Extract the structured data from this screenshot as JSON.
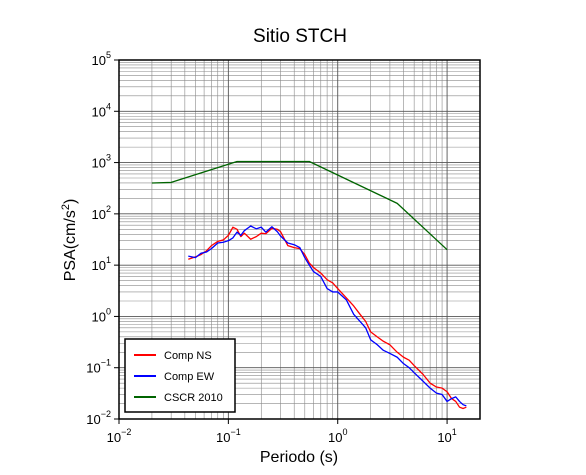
{
  "chart_data": {
    "type": "line",
    "title": "Sitio STCH",
    "xlabel": "Periodo (s)",
    "ylabel": "PSA(cm/s²)",
    "ylabel_parts": {
      "base": "PSA(cm/s",
      "exp": "2",
      "close": ")"
    },
    "x_scale": "log",
    "y_scale": "log",
    "xlim": [
      0.01,
      20
    ],
    "ylim": [
      0.01,
      100000
    ],
    "x_ticks": [
      {
        "value": 0.01,
        "base": "10",
        "exp": "−2"
      },
      {
        "value": 0.1,
        "base": "10",
        "exp": "−1"
      },
      {
        "value": 1,
        "base": "10",
        "exp": "0"
      },
      {
        "value": 10,
        "base": "10",
        "exp": "1"
      }
    ],
    "y_ticks": [
      {
        "value": 0.01,
        "base": "10",
        "exp": "−2"
      },
      {
        "value": 0.1,
        "base": "10",
        "exp": "−1"
      },
      {
        "value": 1,
        "base": "10",
        "exp": "0"
      },
      {
        "value": 10,
        "base": "10",
        "exp": "1"
      },
      {
        "value": 100,
        "base": "10",
        "exp": "2"
      },
      {
        "value": 1000,
        "base": "10",
        "exp": "3"
      },
      {
        "value": 10000,
        "base": "10",
        "exp": "4"
      },
      {
        "value": 100000,
        "base": "10",
        "exp": "5"
      }
    ],
    "grid": true,
    "legend_position": "bottom-left",
    "series": [
      {
        "name": "Comp NS",
        "color": "#ff0000",
        "points": [
          [
            0.043,
            13
          ],
          [
            0.05,
            14.5
          ],
          [
            0.056,
            16
          ],
          [
            0.063,
            19
          ],
          [
            0.07,
            24
          ],
          [
            0.08,
            29
          ],
          [
            0.09,
            31
          ],
          [
            0.1,
            38
          ],
          [
            0.11,
            55
          ],
          [
            0.12,
            50
          ],
          [
            0.13,
            36
          ],
          [
            0.14,
            42
          ],
          [
            0.16,
            32
          ],
          [
            0.18,
            36
          ],
          [
            0.2,
            42
          ],
          [
            0.22,
            41
          ],
          [
            0.25,
            52
          ],
          [
            0.28,
            50
          ],
          [
            0.3,
            45
          ],
          [
            0.35,
            24
          ],
          [
            0.4,
            22
          ],
          [
            0.45,
            21
          ],
          [
            0.5,
            16
          ],
          [
            0.55,
            11
          ],
          [
            0.6,
            9
          ],
          [
            0.7,
            7
          ],
          [
            0.8,
            5.2
          ],
          [
            0.9,
            4.5
          ],
          [
            1.0,
            3.5
          ],
          [
            1.2,
            2.3
          ],
          [
            1.4,
            1.6
          ],
          [
            1.6,
            1.1
          ],
          [
            1.8,
            0.8
          ],
          [
            2.0,
            0.5
          ],
          [
            2.3,
            0.4
          ],
          [
            2.6,
            0.33
          ],
          [
            3.0,
            0.28
          ],
          [
            3.5,
            0.2
          ],
          [
            4.0,
            0.16
          ],
          [
            4.5,
            0.14
          ],
          [
            5.0,
            0.11
          ],
          [
            6.0,
            0.075
          ],
          [
            7.0,
            0.05
          ],
          [
            8.0,
            0.042
          ],
          [
            9.0,
            0.04
          ],
          [
            10,
            0.034
          ],
          [
            11,
            0.025
          ],
          [
            12,
            0.022
          ],
          [
            13,
            0.017
          ],
          [
            14,
            0.016
          ],
          [
            15,
            0.017
          ]
        ]
      },
      {
        "name": "Comp EW",
        "color": "#0000ff",
        "points": [
          [
            0.043,
            15
          ],
          [
            0.05,
            14
          ],
          [
            0.056,
            17
          ],
          [
            0.063,
            18
          ],
          [
            0.07,
            21
          ],
          [
            0.08,
            27
          ],
          [
            0.09,
            28
          ],
          [
            0.1,
            30
          ],
          [
            0.11,
            34
          ],
          [
            0.12,
            44
          ],
          [
            0.13,
            38
          ],
          [
            0.14,
            47
          ],
          [
            0.16,
            58
          ],
          [
            0.18,
            51
          ],
          [
            0.2,
            55
          ],
          [
            0.22,
            44
          ],
          [
            0.25,
            56
          ],
          [
            0.28,
            45
          ],
          [
            0.3,
            37
          ],
          [
            0.35,
            27
          ],
          [
            0.4,
            25
          ],
          [
            0.45,
            22
          ],
          [
            0.5,
            14
          ],
          [
            0.55,
            10
          ],
          [
            0.6,
            7.5
          ],
          [
            0.7,
            6
          ],
          [
            0.8,
            3.5
          ],
          [
            0.9,
            3.0
          ],
          [
            1.0,
            3.0
          ],
          [
            1.2,
            2.1
          ],
          [
            1.4,
            1.1
          ],
          [
            1.6,
            0.8
          ],
          [
            1.8,
            0.6
          ],
          [
            2.0,
            0.35
          ],
          [
            2.3,
            0.28
          ],
          [
            2.6,
            0.22
          ],
          [
            3.0,
            0.19
          ],
          [
            3.5,
            0.16
          ],
          [
            4.0,
            0.12
          ],
          [
            4.5,
            0.1
          ],
          [
            5.0,
            0.08
          ],
          [
            6.0,
            0.055
          ],
          [
            7.0,
            0.04
          ],
          [
            8.0,
            0.032
          ],
          [
            9.0,
            0.03
          ],
          [
            10,
            0.022
          ],
          [
            11,
            0.025
          ],
          [
            12,
            0.027
          ],
          [
            13,
            0.022
          ],
          [
            14,
            0.019
          ],
          [
            15,
            0.018
          ]
        ]
      },
      {
        "name": "CSCR 2010",
        "color": "#006400",
        "points": [
          [
            0.02,
            400
          ],
          [
            0.03,
            410
          ],
          [
            0.12,
            1050
          ],
          [
            0.55,
            1050
          ],
          [
            3.5,
            160
          ],
          [
            10,
            20
          ]
        ]
      }
    ]
  }
}
